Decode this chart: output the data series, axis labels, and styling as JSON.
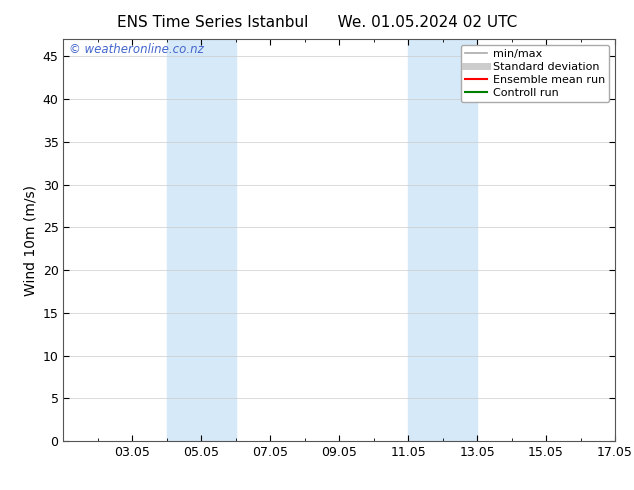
{
  "title_left": "ENS Time Series Istanbul",
  "title_right": "We. 01.05.2024 02 UTC",
  "ylabel": "Wind 10m (m/s)",
  "watermark": "© weatheronline.co.nz",
  "ylim": [
    0,
    47
  ],
  "yticks": [
    0,
    5,
    10,
    15,
    20,
    25,
    30,
    35,
    40,
    45
  ],
  "xtick_labels": [
    "03.05",
    "05.05",
    "07.05",
    "09.05",
    "11.05",
    "13.05",
    "15.05",
    "17.05"
  ],
  "xtick_positions": [
    3,
    5,
    7,
    9,
    11,
    13,
    15,
    17
  ],
  "xlim": [
    1,
    17
  ],
  "bg_color": "#ffffff",
  "plot_bg_color": "#ffffff",
  "shaded_bands": [
    {
      "x_start": 4.0,
      "x_end": 6.0,
      "color": "#d6e9f8"
    },
    {
      "x_start": 11.0,
      "x_end": 13.0,
      "color": "#d6e9f8"
    }
  ],
  "legend_entries": [
    {
      "label": "min/max",
      "color": "#aaaaaa",
      "lw": 1.2
    },
    {
      "label": "Standard deviation",
      "color": "#cccccc",
      "lw": 5
    },
    {
      "label": "Ensemble mean run",
      "color": "#ff0000",
      "lw": 1.5
    },
    {
      "label": "Controll run",
      "color": "#008000",
      "lw": 1.5
    }
  ],
  "title_fontsize": 11,
  "label_fontsize": 10,
  "tick_fontsize": 9,
  "legend_fontsize": 8,
  "watermark_color": "#4466cc",
  "border_color": "#555555"
}
